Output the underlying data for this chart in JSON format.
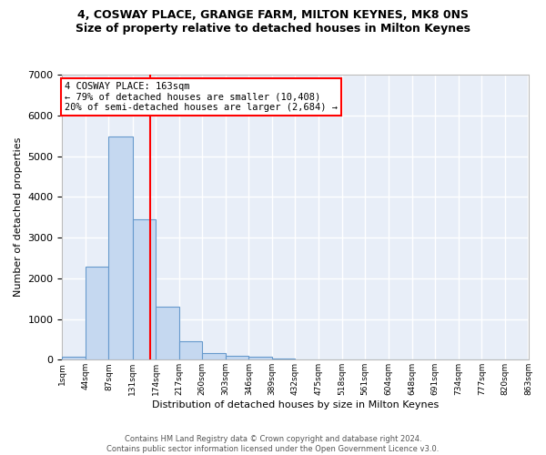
{
  "title": "4, COSWAY PLACE, GRANGE FARM, MILTON KEYNES, MK8 0NS",
  "subtitle": "Size of property relative to detached houses in Milton Keynes",
  "xlabel": "Distribution of detached houses by size in Milton Keynes",
  "ylabel": "Number of detached properties",
  "bar_color": "#c5d8f0",
  "bar_edge_color": "#6699cc",
  "bg_color": "#e8eef8",
  "grid_color": "#ffffff",
  "vline_x": 163,
  "vline_color": "red",
  "annotation_text": "4 COSWAY PLACE: 163sqm\n← 79% of detached houses are smaller (10,408)\n20% of semi-detached houses are larger (2,684) →",
  "annotation_box_color": "white",
  "annotation_box_edgecolor": "red",
  "footnote": "Contains HM Land Registry data © Crown copyright and database right 2024.\nContains public sector information licensed under the Open Government Licence v3.0.",
  "bin_edges": [
    1,
    44,
    87,
    131,
    174,
    217,
    260,
    303,
    346,
    389,
    432,
    475,
    518,
    561,
    604,
    648,
    691,
    734,
    777,
    820,
    863
  ],
  "bar_heights": [
    80,
    2280,
    5470,
    3440,
    1310,
    460,
    155,
    90,
    65,
    40,
    0,
    0,
    0,
    0,
    0,
    0,
    0,
    0,
    0,
    0
  ],
  "ylim": [
    0,
    7000
  ],
  "yticks": [
    0,
    1000,
    2000,
    3000,
    4000,
    5000,
    6000,
    7000
  ],
  "tick_labels": [
    "1sqm",
    "44sqm",
    "87sqm",
    "131sqm",
    "174sqm",
    "217sqm",
    "260sqm",
    "303sqm",
    "346sqm",
    "389sqm",
    "432sqm",
    "475sqm",
    "518sqm",
    "561sqm",
    "604sqm",
    "648sqm",
    "691sqm",
    "734sqm",
    "777sqm",
    "820sqm",
    "863sqm"
  ]
}
